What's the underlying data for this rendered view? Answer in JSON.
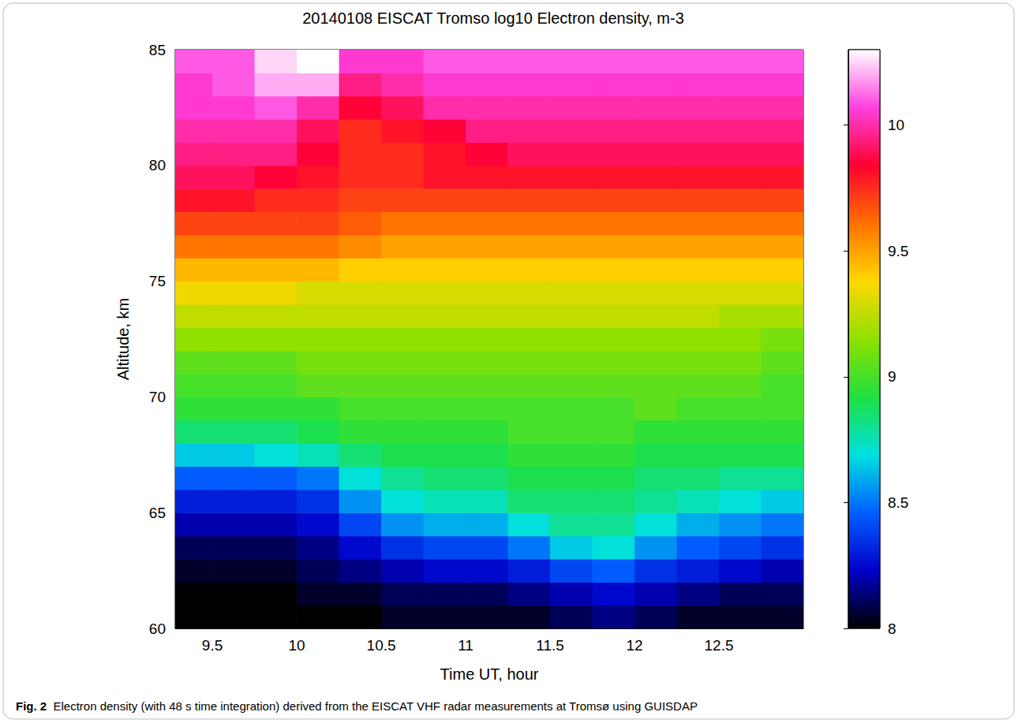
{
  "chart_data": {
    "type": "heatmap",
    "title": "20140108 EISCAT Tromso log10 Electron density, m-3",
    "xlabel": "Time UT, hour",
    "ylabel": "Altitude, km",
    "caption_label": "Fig. 2",
    "caption": "Electron density (with 48 s time integration) derived from the EISCAT VHF radar measurements at Tromsø using GUISDAP",
    "xlim": [
      9.28,
      13.0
    ],
    "xticks": [
      9.5,
      10,
      10.5,
      11,
      11.5,
      12,
      12.5
    ],
    "ylim": [
      60,
      85
    ],
    "yticks": [
      60,
      65,
      70,
      75,
      80,
      85
    ],
    "grid": false,
    "x_edges": [
      9.28,
      9.5,
      9.75,
      10,
      10.25,
      10.5,
      10.75,
      11,
      11.25,
      11.5,
      11.75,
      12,
      12.25,
      12.5,
      12.75,
      13.0
    ],
    "y_edges": [
      60,
      61,
      62,
      63,
      64,
      65,
      66,
      67,
      68,
      69,
      70,
      71,
      72,
      73,
      74,
      75,
      76,
      77,
      78,
      79,
      80,
      81,
      82,
      83,
      84,
      85
    ],
    "cells": [
      [
        8.0,
        8.0,
        8.0,
        8.0,
        8.0,
        8.05,
        8.05,
        8.05,
        8.05,
        8.1,
        8.15,
        8.1,
        8.05,
        8.05,
        8.05
      ],
      [
        8.0,
        8.0,
        8.0,
        8.05,
        8.05,
        8.1,
        8.1,
        8.1,
        8.15,
        8.2,
        8.25,
        8.2,
        8.15,
        8.1,
        8.1
      ],
      [
        8.05,
        8.05,
        8.05,
        8.1,
        8.15,
        8.2,
        8.25,
        8.25,
        8.3,
        8.4,
        8.45,
        8.35,
        8.3,
        8.25,
        8.2
      ],
      [
        8.1,
        8.1,
        8.1,
        8.15,
        8.25,
        8.35,
        8.4,
        8.4,
        8.5,
        8.65,
        8.7,
        8.55,
        8.45,
        8.4,
        8.35
      ],
      [
        8.2,
        8.2,
        8.2,
        8.25,
        8.4,
        8.55,
        8.6,
        8.6,
        8.7,
        8.8,
        8.8,
        8.7,
        8.6,
        8.55,
        8.5
      ],
      [
        8.3,
        8.3,
        8.3,
        8.35,
        8.55,
        8.7,
        8.75,
        8.75,
        8.85,
        8.85,
        8.85,
        8.8,
        8.75,
        8.7,
        8.65
      ],
      [
        8.45,
        8.45,
        8.45,
        8.5,
        8.7,
        8.8,
        8.85,
        8.85,
        8.9,
        8.9,
        8.9,
        8.85,
        8.85,
        8.8,
        8.8
      ],
      [
        8.65,
        8.65,
        8.7,
        8.75,
        8.85,
        8.9,
        8.9,
        8.9,
        8.95,
        8.95,
        8.95,
        8.9,
        8.9,
        8.9,
        8.9
      ],
      [
        8.85,
        8.85,
        8.85,
        8.9,
        8.95,
        8.95,
        8.95,
        8.95,
        9.0,
        9.0,
        9.0,
        8.95,
        8.95,
        8.95,
        8.95
      ],
      [
        8.95,
        8.95,
        8.95,
        8.95,
        9.0,
        9.0,
        9.0,
        9.0,
        9.0,
        9.0,
        9.0,
        9.05,
        9.0,
        9.0,
        9.0
      ],
      [
        9.0,
        9.0,
        9.0,
        9.05,
        9.05,
        9.05,
        9.05,
        9.05,
        9.05,
        9.05,
        9.05,
        9.05,
        9.05,
        9.05,
        9.0
      ],
      [
        9.05,
        9.05,
        9.05,
        9.1,
        9.1,
        9.1,
        9.1,
        9.1,
        9.1,
        9.1,
        9.1,
        9.1,
        9.1,
        9.1,
        9.05
      ],
      [
        9.15,
        9.15,
        9.15,
        9.15,
        9.15,
        9.15,
        9.15,
        9.15,
        9.15,
        9.15,
        9.15,
        9.15,
        9.15,
        9.15,
        9.1
      ],
      [
        9.25,
        9.25,
        9.25,
        9.25,
        9.25,
        9.25,
        9.25,
        9.25,
        9.25,
        9.25,
        9.25,
        9.25,
        9.25,
        9.2,
        9.2
      ],
      [
        9.35,
        9.35,
        9.35,
        9.3,
        9.3,
        9.3,
        9.3,
        9.3,
        9.3,
        9.3,
        9.3,
        9.3,
        9.3,
        9.3,
        9.3
      ],
      [
        9.45,
        9.45,
        9.45,
        9.45,
        9.4,
        9.4,
        9.4,
        9.4,
        9.4,
        9.4,
        9.4,
        9.4,
        9.4,
        9.4,
        9.4
      ],
      [
        9.6,
        9.6,
        9.6,
        9.6,
        9.55,
        9.5,
        9.5,
        9.5,
        9.5,
        9.5,
        9.5,
        9.5,
        9.5,
        9.5,
        9.5
      ],
      [
        9.7,
        9.7,
        9.7,
        9.7,
        9.65,
        9.6,
        9.6,
        9.6,
        9.6,
        9.6,
        9.6,
        9.6,
        9.6,
        9.6,
        9.6
      ],
      [
        9.8,
        9.8,
        9.75,
        9.75,
        9.7,
        9.7,
        9.7,
        9.7,
        9.7,
        9.7,
        9.7,
        9.7,
        9.7,
        9.7,
        9.7
      ],
      [
        9.9,
        9.9,
        9.85,
        9.8,
        9.75,
        9.75,
        9.8,
        9.8,
        9.8,
        9.8,
        9.8,
        9.8,
        9.8,
        9.8,
        9.8
      ],
      [
        9.95,
        9.95,
        9.95,
        9.85,
        9.75,
        9.75,
        9.8,
        9.85,
        9.9,
        9.9,
        9.9,
        9.9,
        9.9,
        9.9,
        9.9
      ],
      [
        10.0,
        10.0,
        10.0,
        9.9,
        9.75,
        9.8,
        9.85,
        9.95,
        9.95,
        9.95,
        9.95,
        9.95,
        9.95,
        9.95,
        9.95
      ],
      [
        10.05,
        10.05,
        10.1,
        10.0,
        9.85,
        9.9,
        10.0,
        10.0,
        10.0,
        10.0,
        10.0,
        10.0,
        10.0,
        10.0,
        10.0
      ],
      [
        10.05,
        10.1,
        10.2,
        10.2,
        9.95,
        10.0,
        10.05,
        10.05,
        10.05,
        10.05,
        10.05,
        10.05,
        10.05,
        10.05,
        10.05
      ],
      [
        10.1,
        10.1,
        10.25,
        10.3,
        10.05,
        10.05,
        10.1,
        10.1,
        10.1,
        10.1,
        10.1,
        10.1,
        10.1,
        10.1,
        10.1
      ]
    ],
    "colorbar": {
      "range": [
        8,
        10.3
      ],
      "ticks": [
        8,
        8.5,
        9,
        9.5,
        10
      ]
    }
  }
}
